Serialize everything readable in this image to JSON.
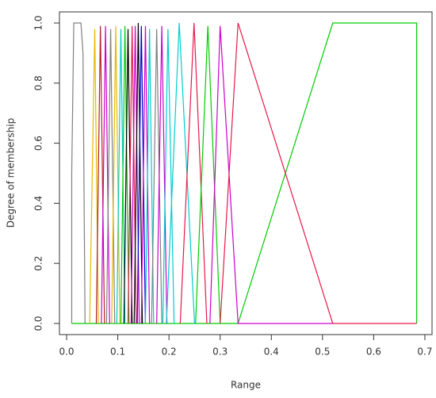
{
  "chart_data": {
    "type": "line",
    "x_label": "Range",
    "y_label": "Degree of membership",
    "xlim": [
      -0.014,
      0.714
    ],
    "ylim": [
      -0.037,
      1.037
    ],
    "xticks": [
      {
        "value": 0,
        "label": "0.0"
      },
      0.1,
      0.2,
      0.3,
      0.4,
      0.5,
      0.6,
      0.7
    ],
    "yticks": [
      {
        "value": 0,
        "label": "0.0"
      },
      0.2,
      0.4,
      0.6,
      0.8,
      {
        "value": 1,
        "label": "1.0"
      }
    ],
    "series": [
      {
        "color": "#00cd00",
        "x": [
          0.01,
          0.335,
          0.52,
          0.684,
          0.684
        ],
        "y": [
          0,
          0,
          1,
          1,
          0
        ]
      },
      {
        "color": "#808080",
        "x": [
          0.01,
          0.01,
          0.014,
          0.028,
          0.032,
          0.036
        ],
        "y": [
          0,
          0.5,
          1,
          1,
          0.9,
          0
        ]
      },
      {
        "color": "#e6b800",
        "x": [
          0.045,
          0.055,
          0.062
        ],
        "y": [
          0,
          0.98,
          0
        ]
      },
      {
        "color": "#b22222",
        "x": [
          0.058,
          0.066,
          0.074
        ],
        "y": [
          0,
          0.99,
          0
        ]
      },
      {
        "color": "#cd00cd",
        "x": [
          0.068,
          0.076,
          0.084
        ],
        "y": [
          0,
          0.99,
          0
        ]
      },
      {
        "color": "#808080",
        "x": [
          0.078,
          0.086,
          0.094
        ],
        "y": [
          0,
          0.98,
          0
        ]
      },
      {
        "color": "#e6b800",
        "x": [
          0.088,
          0.096,
          0.104
        ],
        "y": [
          0,
          0.99,
          0
        ]
      },
      {
        "color": "#00cdcd",
        "x": [
          0.098,
          0.106,
          0.114
        ],
        "y": [
          0,
          0.98,
          0
        ]
      },
      {
        "color": "#00cd00",
        "x": [
          0.106,
          0.114,
          0.122
        ],
        "y": [
          0,
          0.99,
          0
        ]
      },
      {
        "color": "#000000",
        "x": [
          0.112,
          0.12,
          0.128
        ],
        "y": [
          0,
          0.98,
          0
        ]
      },
      {
        "color": "#e6194b",
        "x": [
          0.12,
          0.128,
          0.136
        ],
        "y": [
          0,
          0.99,
          0
        ]
      },
      {
        "color": "#cd00cd",
        "x": [
          0.126,
          0.134,
          0.142
        ],
        "y": [
          0,
          0.99,
          0
        ]
      },
      {
        "color": "#000000",
        "x": [
          0.132,
          0.14,
          0.148
        ],
        "y": [
          0,
          1,
          0
        ]
      },
      {
        "color": "#0000cd",
        "x": [
          0.138,
          0.146,
          0.154
        ],
        "y": [
          0,
          0.99,
          0
        ]
      },
      {
        "color": "#cd00cd",
        "x": [
          0.146,
          0.154,
          0.162
        ],
        "y": [
          0,
          0.99,
          0
        ]
      },
      {
        "color": "#00cdcd",
        "x": [
          0.154,
          0.162,
          0.17
        ],
        "y": [
          0,
          0.98,
          0
        ]
      },
      {
        "color": "#808080",
        "x": [
          0.166,
          0.176,
          0.186
        ],
        "y": [
          0,
          0.98,
          0
        ]
      },
      {
        "color": "#cd00cd",
        "x": [
          0.176,
          0.186,
          0.196
        ],
        "y": [
          0,
          0.99,
          0
        ]
      },
      {
        "color": "#00cdcd",
        "x": [
          0.188,
          0.198,
          0.21
        ],
        "y": [
          0,
          0.98,
          0
        ]
      },
      {
        "color": "#00cdcd",
        "x": [
          0.195,
          0.22,
          0.25
        ],
        "y": [
          0,
          1,
          0
        ]
      },
      {
        "color": "#e6194b",
        "x": [
          0.222,
          0.249,
          0.274
        ],
        "y": [
          0,
          1,
          0
        ]
      },
      {
        "color": "#00cd00",
        "x": [
          0.252,
          0.276,
          0.3
        ],
        "y": [
          0,
          0.99,
          0
        ]
      },
      {
        "color": "#cd00cd",
        "x": [
          0.28,
          0.3,
          0.335,
          0.52
        ],
        "y": [
          0,
          0.99,
          0,
          0
        ]
      },
      {
        "color": "#e6194b",
        "x": [
          0.3,
          0.335,
          0.52,
          0.684
        ],
        "y": [
          0,
          1,
          0,
          0
        ]
      }
    ]
  }
}
